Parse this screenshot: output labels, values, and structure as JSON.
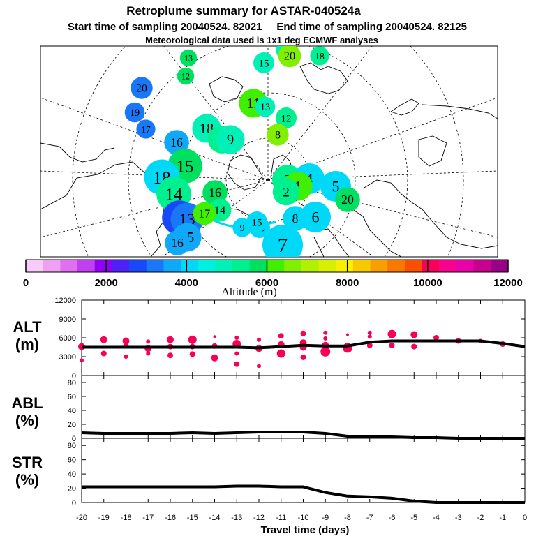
{
  "header": {
    "title": "Retroplume summary for ASTAR-040524a",
    "subtitle": "Start time of sampling 20040524. 82021     End time of sampling 20040524. 82125",
    "met": "Meteorological data used is 1x1 deg ECMWF analyses"
  },
  "colorbar": {
    "colors": [
      "#f8ccf8",
      "#f0a0f0",
      "#e070f0",
      "#c040f0",
      "#9000f8",
      "#5020f8",
      "#1848f8",
      "#1878f8",
      "#10a8f8",
      "#00d8f8",
      "#00f0e0",
      "#00f0b8",
      "#00f090",
      "#00e060",
      "#40f000",
      "#80f000",
      "#b0f000",
      "#d8f000",
      "#f8f000",
      "#f8c800",
      "#f8a000",
      "#f87800",
      "#f85000",
      "#f80058",
      "#f80090",
      "#e800a8",
      "#c80090",
      "#980088"
    ],
    "ticks": [
      "0",
      "2000",
      "4000",
      "6000",
      "8000",
      "10000",
      "12000"
    ],
    "label": "Altitude (m)"
  },
  "map_markers": [
    {
      "label": "20",
      "color": "#1878f8",
      "size": 0.55
    },
    {
      "label": "19",
      "color": "#1878f8",
      "size": 0.45
    },
    {
      "label": "17",
      "color": "#1878f8",
      "size": 0.4
    },
    {
      "label": "13",
      "color": "#00e060",
      "size": 0.3
    },
    {
      "label": "12",
      "color": "#00e060",
      "size": 0.3
    },
    {
      "label": "16",
      "color": "#10a8f8",
      "size": 0.7
    },
    {
      "label": "18",
      "color": "#00f0b8",
      "size": 0.9
    },
    {
      "label": "17",
      "color": "#00f090",
      "size": 0.85
    },
    {
      "label": "9",
      "color": "#00f0b8",
      "size": 0.9
    },
    {
      "label": "15",
      "color": "#00e060",
      "size": 1.2
    },
    {
      "label": "18",
      "color": "#00d8f8",
      "size": 1.25
    },
    {
      "label": "14",
      "color": "#00f090",
      "size": 1.2
    },
    {
      "label": "19",
      "color": "#1848f8",
      "size": 1.2
    },
    {
      "label": "13",
      "color": "#1878f8",
      "size": 1.1
    },
    {
      "label": "15",
      "color": "#10a8f8",
      "size": 0.9
    },
    {
      "label": "16",
      "color": "#10a8f8",
      "size": 0.7
    },
    {
      "label": "11",
      "color": "#40f000",
      "size": 0.9
    },
    {
      "label": "13",
      "color": "#00f0b8",
      "size": 0.45
    },
    {
      "label": "12",
      "color": "#00f090",
      "size": 0.5
    },
    {
      "label": "8",
      "color": "#80f000",
      "size": 0.55
    },
    {
      "label": "15",
      "color": "#00f0b8",
      "size": 0.5
    },
    {
      "label": "16",
      "color": "#00f0b8",
      "size": 0.4
    },
    {
      "label": "20",
      "color": "#80f000",
      "size": 0.6
    },
    {
      "label": "18",
      "color": "#00f090",
      "size": 0.4
    },
    {
      "label": "3",
      "color": "#00f090",
      "size": 1.0
    },
    {
      "label": "4",
      "color": "#00d8f8",
      "size": 1.0
    },
    {
      "label": "1",
      "color": "#40f000",
      "size": 0.9
    },
    {
      "label": "2",
      "color": "#00f090",
      "size": 0.8
    },
    {
      "label": "5",
      "color": "#00d8f8",
      "size": 1.0
    },
    {
      "label": "6",
      "color": "#00d8f8",
      "size": 1.0
    },
    {
      "label": "7",
      "color": "#00d8f8",
      "size": 1.5
    },
    {
      "label": "8",
      "color": "#00d8f8",
      "size": 0.7
    },
    {
      "label": "10",
      "color": "#00d8f8",
      "size": 0.5
    },
    {
      "label": "9",
      "color": "#00d8f8",
      "size": 0.4
    },
    {
      "label": "15",
      "color": "#00d8f8",
      "size": 0.5
    },
    {
      "label": "20",
      "color": "#00e060",
      "size": 0.7
    },
    {
      "label": "16",
      "color": "#00e060",
      "size": 0.7
    },
    {
      "label": "14",
      "color": "#00f090",
      "size": 0.6
    },
    {
      "label": "17",
      "color": "#40f000",
      "size": 0.6
    }
  ],
  "chart_data": [
    {
      "type": "line",
      "name": "ALT",
      "ylabel": "ALT\n(m)",
      "ylabel_line1": "ALT",
      "ylabel_line2": "(m)",
      "ylim": [
        0,
        12000
      ],
      "yticks": [
        "0",
        "3000",
        "6000",
        "9000",
        "12000"
      ],
      "x": [
        -20,
        -19,
        -18,
        -17,
        -16,
        -15,
        -14,
        -13,
        -12,
        -11,
        -10,
        -9,
        -8,
        -7,
        -6,
        -5,
        -4,
        -3,
        -2,
        -1,
        0
      ],
      "values": [
        4500,
        4500,
        4500,
        4500,
        4500,
        4500,
        4500,
        4500,
        4400,
        4600,
        4800,
        4700,
        4700,
        5300,
        5500,
        5500,
        5500,
        5500,
        5500,
        5100,
        4600
      ],
      "scatter_color": "#f80058",
      "scatter": [
        [
          -20,
          4600,
          5
        ],
        [
          -20,
          2400,
          3
        ],
        [
          -19,
          5700,
          5
        ],
        [
          -19,
          3500,
          4
        ],
        [
          -18,
          5500,
          5
        ],
        [
          -18,
          4700,
          4
        ],
        [
          -18,
          3000,
          3
        ],
        [
          -17,
          5400,
          3
        ],
        [
          -17,
          4300,
          5
        ],
        [
          -17,
          3500,
          3
        ],
        [
          -16,
          5700,
          5
        ],
        [
          -16,
          4600,
          4
        ],
        [
          -16,
          3200,
          4
        ],
        [
          -15,
          5700,
          6
        ],
        [
          -15,
          4600,
          4
        ],
        [
          -15,
          3400,
          4
        ],
        [
          -14,
          6200,
          2
        ],
        [
          -14,
          4700,
          4
        ],
        [
          -14,
          2800,
          5
        ],
        [
          -13,
          6000,
          3
        ],
        [
          -13,
          5000,
          6
        ],
        [
          -13,
          3500,
          3
        ],
        [
          -13,
          1800,
          4
        ],
        [
          -12,
          5700,
          3
        ],
        [
          -12,
          4300,
          5
        ],
        [
          -12,
          1500,
          3
        ],
        [
          -11,
          6300,
          4
        ],
        [
          -11,
          4900,
          5
        ],
        [
          -11,
          3500,
          6
        ],
        [
          -10,
          6700,
          4
        ],
        [
          -10,
          5200,
          5
        ],
        [
          -10,
          4500,
          5
        ],
        [
          -10,
          2900,
          4
        ],
        [
          -9,
          6800,
          3
        ],
        [
          -9,
          5900,
          3
        ],
        [
          -9,
          4800,
          5
        ],
        [
          -9,
          3800,
          7
        ],
        [
          -8,
          6500,
          2
        ],
        [
          -8,
          4400,
          7
        ],
        [
          -7,
          6800,
          3
        ],
        [
          -7,
          6200,
          3
        ],
        [
          -7,
          4800,
          4
        ],
        [
          -6,
          6600,
          6
        ],
        [
          -6,
          4800,
          4
        ],
        [
          -5,
          6500,
          5
        ],
        [
          -5,
          4600,
          4
        ],
        [
          -4,
          6000,
          4
        ],
        [
          -3,
          5500,
          4
        ],
        [
          -2,
          5500,
          3
        ],
        [
          -1,
          5000,
          4
        ]
      ]
    },
    {
      "type": "line",
      "name": "ABL",
      "ylabel": "ABL\n(%)",
      "ylabel_line1": "ABL",
      "ylabel_line2": "(%)",
      "ylim": [
        0,
        90
      ],
      "yticks": [
        "0",
        "20",
        "40",
        "60",
        "80"
      ],
      "x": [
        -20,
        -19,
        -18,
        -17,
        -16,
        -15,
        -14,
        -13,
        -12,
        -11,
        -10,
        -9,
        -8,
        -7,
        -6,
        -5,
        -4,
        -3,
        -2,
        -1,
        0
      ],
      "values": [
        8,
        7,
        7,
        7,
        7,
        8,
        7,
        8,
        9,
        9,
        9,
        7,
        3,
        2,
        2,
        1,
        1,
        0,
        0,
        0,
        0
      ]
    },
    {
      "type": "line",
      "name": "STR",
      "ylabel": "STR\n(%)",
      "ylabel_line1": "STR",
      "ylabel_line2": "(%)",
      "ylim": [
        0,
        90
      ],
      "yticks": [
        "0",
        "20",
        "40",
        "60",
        "80"
      ],
      "x": [
        -20,
        -19,
        -18,
        -17,
        -16,
        -15,
        -14,
        -13,
        -12,
        -11,
        -10,
        -9,
        -8,
        -7,
        -6,
        -5,
        -4,
        -3,
        -2,
        -1,
        0
      ],
      "values": [
        22,
        22,
        22,
        22,
        22,
        22,
        22,
        23,
        23,
        22,
        22,
        14,
        9,
        8,
        6,
        2,
        0,
        0,
        0,
        0,
        0
      ],
      "xlabel": "Travel time (days)",
      "xticks": [
        "-20",
        "-19",
        "-18",
        "-17",
        "-16",
        "-15",
        "-14",
        "-13",
        "-12",
        "-11",
        "-10",
        "-9",
        "-8",
        "-7",
        "-6",
        "-5",
        "-4",
        "-3",
        "-2",
        "-1",
        "0"
      ]
    }
  ]
}
